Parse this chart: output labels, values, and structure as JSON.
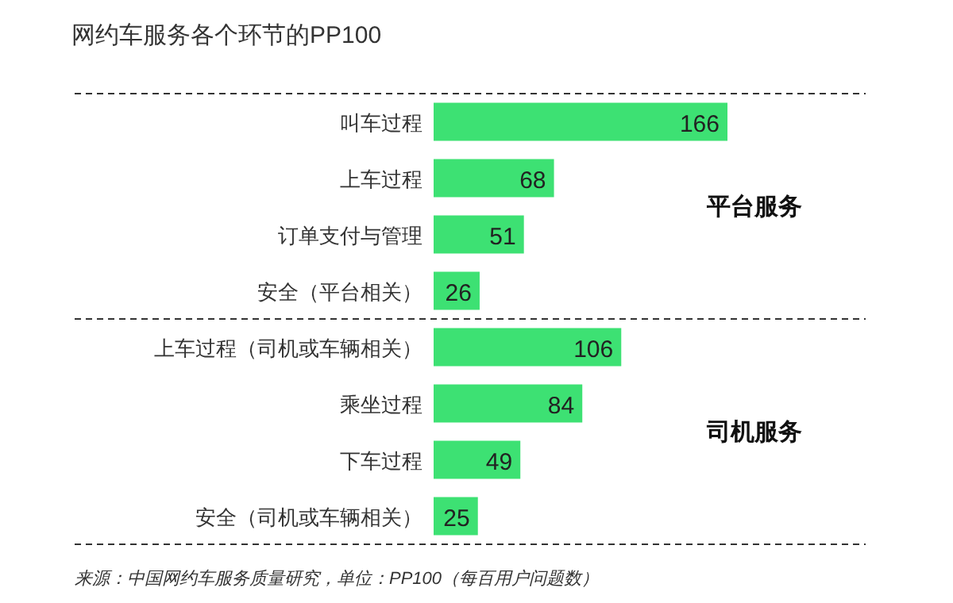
{
  "chart_data": {
    "type": "bar",
    "orientation": "horizontal",
    "title": "网约车服务各个环节的PP100",
    "categories": [
      "叫车过程",
      "上车过程",
      "订单支付与管理",
      "安全（平台相关）",
      "上车过程（司机或车辆相关）",
      "乘坐过程",
      "下车过程",
      "安全（司机或车辆相关）"
    ],
    "values": [
      166,
      68,
      51,
      26,
      106,
      84,
      49,
      25
    ],
    "color": "#3de173",
    "data_labels": true,
    "annotations": [
      "平台服务",
      "司机服务",
      "来源：中国网约车服务质量研究，单位：PP100（每百用户问题数）"
    ]
  }
}
